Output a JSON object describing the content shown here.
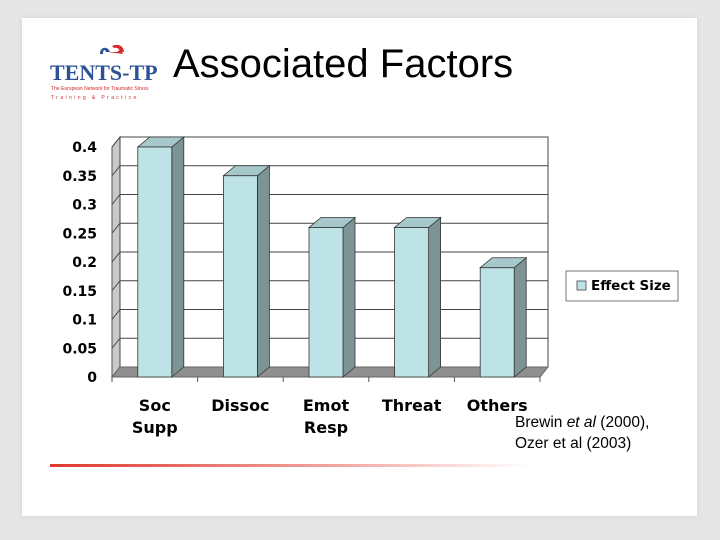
{
  "slide": {
    "title": "Associated Factors",
    "logo": {
      "name": "TENTS-TP",
      "subtitle": "The European Network for Traumatic Stress",
      "tagline": "Training & Practice"
    },
    "citation": {
      "line1_prefix": "Brewin ",
      "line1_italic": "et al",
      "line1_suffix": " (2000),",
      "line2": "Ozer et al (2003)"
    }
  },
  "colors": {
    "bar_front": "#bde3e6",
    "bar_side": "#7d9496",
    "bar_top": "#a7c8cb",
    "bar_stroke": "#333333",
    "grid": "#444444",
    "back_wall": "#ffffff",
    "floor": "#8f8f8f",
    "left_wall": "#c9c9c9",
    "accent_red": "#e0392f",
    "logo_blue": "#2d5096",
    "logo_red": "#d52b2b"
  },
  "chart_data": {
    "type": "bar",
    "style": "3d-clustered-column",
    "categories": [
      "Soc Supp",
      "Dissoc",
      "Emot Resp",
      "Threat",
      "Others"
    ],
    "series": [
      {
        "name": "Effect Size",
        "values": [
          0.4,
          0.35,
          0.26,
          0.26,
          0.19
        ]
      }
    ],
    "ylim": [
      0,
      0.4
    ],
    "yticks": [
      "0",
      "0.05",
      "0.1",
      "0.15",
      "0.2",
      "0.25",
      "0.3",
      "0.35",
      "0.4"
    ],
    "grid": true,
    "legend": "right",
    "title": "",
    "xlabel": "",
    "ylabel": ""
  }
}
